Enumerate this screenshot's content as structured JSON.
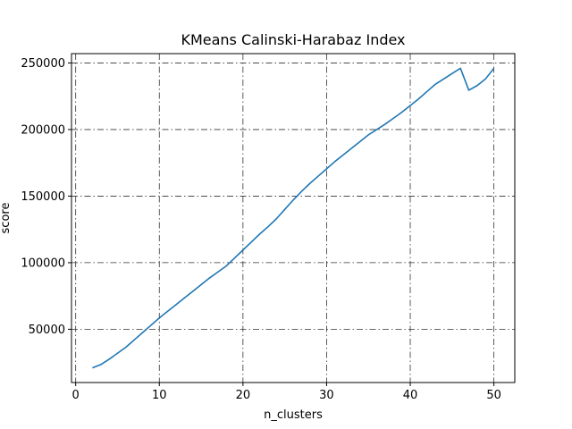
{
  "chart_data": {
    "type": "line",
    "title": "KMeans Calinski-Harabaz Index",
    "xlabel": "n_clusters",
    "ylabel": "score",
    "xlim": [
      -0.5,
      52.5
    ],
    "ylim": [
      10000,
      257000
    ],
    "xticks": [
      0,
      10,
      20,
      30,
      40,
      50
    ],
    "yticks": [
      50000,
      100000,
      150000,
      200000,
      250000
    ],
    "grid": true,
    "series": [
      {
        "color": "#1f77b4",
        "x": [
          2,
          3,
          4,
          5,
          6,
          7,
          8,
          9,
          10,
          11,
          12,
          13,
          14,
          15,
          16,
          17,
          18,
          19,
          20,
          21,
          22,
          23,
          24,
          25,
          26,
          27,
          28,
          29,
          30,
          31,
          32,
          33,
          34,
          35,
          36,
          37,
          38,
          39,
          40,
          41,
          42,
          43,
          44,
          45,
          46,
          47,
          48,
          49,
          50
        ],
        "y": [
          21000,
          23500,
          27500,
          32000,
          36500,
          42000,
          47500,
          53000,
          58500,
          63500,
          68500,
          73500,
          78500,
          83500,
          88500,
          93000,
          97500,
          103500,
          109500,
          115500,
          121500,
          127000,
          133000,
          140000,
          147000,
          153500,
          159500,
          165000,
          170500,
          176000,
          181000,
          186000,
          191000,
          196000,
          200000,
          204000,
          208500,
          213000,
          218000,
          223000,
          228500,
          234000,
          238000,
          242000,
          246000,
          229500,
          233000,
          238000,
          246000
        ]
      }
    ]
  }
}
